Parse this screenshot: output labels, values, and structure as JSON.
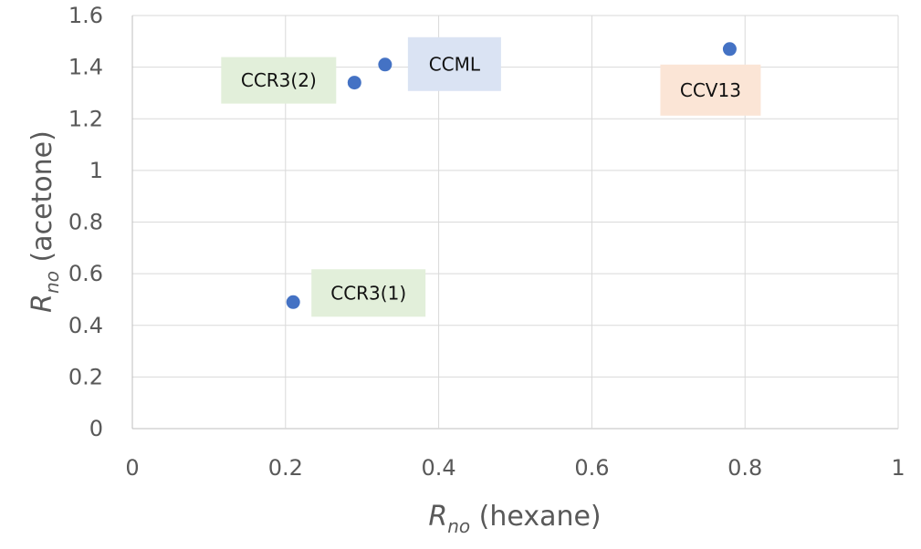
{
  "chart_data": {
    "type": "scatter",
    "title": "",
    "xlabel": {
      "symbol": "R",
      "sub": "no",
      "text": " (hexane)"
    },
    "ylabel": {
      "symbol": "R",
      "sub": "no",
      "text": " (acetone)"
    },
    "xlim": [
      0,
      1
    ],
    "ylim": [
      0,
      1.6
    ],
    "x_ticks": [
      {
        "value": 0,
        "label": "0"
      },
      {
        "value": 0.2,
        "label": "0.2"
      },
      {
        "value": 0.4,
        "label": "0.4"
      },
      {
        "value": 0.6,
        "label": "0.6"
      },
      {
        "value": 0.8,
        "label": "0.8"
      },
      {
        "value": 1,
        "label": "1"
      }
    ],
    "y_ticks": [
      {
        "value": 0,
        "label": "0"
      },
      {
        "value": 0.2,
        "label": "0.2"
      },
      {
        "value": 0.4,
        "label": "0.4"
      },
      {
        "value": 0.6,
        "label": "0.6"
      },
      {
        "value": 0.8,
        "label": "0.8"
      },
      {
        "value": 1,
        "label": "1"
      },
      {
        "value": 1.2,
        "label": "1.2"
      },
      {
        "value": 1.4,
        "label": "1.4"
      },
      {
        "value": 1.6,
        "label": "1.6"
      }
    ],
    "grid": true,
    "marker_color": "#4472C4",
    "points": [
      {
        "name": "CCR3(1)",
        "x": 0.21,
        "y": 0.49,
        "label_color": "#E2EFDA"
      },
      {
        "name": "CCR3(2)",
        "x": 0.29,
        "y": 1.34,
        "label_color": "#E2EFDA"
      },
      {
        "name": "CCML",
        "x": 0.33,
        "y": 1.41,
        "label_color": "#DAE3F3"
      },
      {
        "name": "CCV13",
        "x": 0.78,
        "y": 1.47,
        "label_color": "#FBE5D6"
      }
    ]
  }
}
